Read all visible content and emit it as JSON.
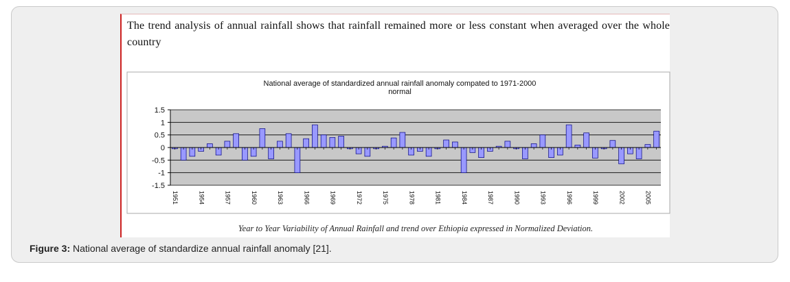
{
  "intro_text": "The trend analysis of annual rainfall shows that rainfall remained more or less constant when averaged over the whole country",
  "figure_caption_label": "Figure 3:",
  "figure_caption_text": " National average of standardize annual rainfall anomaly [21].",
  "image_caption": "Year to Year Variability of Annual Rainfall and trend over Ethiopia expressed in Normalized Deviation.",
  "chart_data": {
    "type": "bar",
    "title": "National average of standardized annual rainfall anomaly compated to 1971-2000 normal",
    "title_lines": [
      "National average of standardized annual rainfall anomaly compated to 1971-2000",
      "normal"
    ],
    "xlabel": "",
    "ylabel": "",
    "ylim": [
      -1.5,
      1.5
    ],
    "yticks": [
      -1.5,
      -1,
      -0.5,
      0,
      0.5,
      1,
      1.5
    ],
    "ytick_labels": [
      "-1.5",
      "-1",
      "-0.5",
      "0",
      "0.5",
      "1",
      "1.5"
    ],
    "grid": true,
    "legend": "none",
    "bar_color": "#9999ff",
    "bar_edge_color": "#000080",
    "xtick_labels": [
      "1951",
      "1954",
      "1957",
      "1960",
      "1963",
      "1966",
      "1969",
      "1972",
      "1975",
      "1978",
      "1981",
      "1984",
      "1987",
      "1990",
      "1993",
      "1996",
      "1999",
      "2002",
      "2005"
    ],
    "x": [
      1951,
      1952,
      1953,
      1954,
      1955,
      1956,
      1957,
      1958,
      1959,
      1960,
      1961,
      1962,
      1963,
      1964,
      1965,
      1966,
      1967,
      1968,
      1969,
      1970,
      1971,
      1972,
      1973,
      1974,
      1975,
      1976,
      1977,
      1978,
      1979,
      1980,
      1981,
      1982,
      1983,
      1984,
      1985,
      1986,
      1987,
      1988,
      1989,
      1990,
      1991,
      1992,
      1993,
      1994,
      1995,
      1996,
      1997,
      1998,
      1999,
      2000,
      2001,
      2002,
      2003,
      2004,
      2005,
      2006
    ],
    "values": [
      -0.05,
      -0.5,
      -0.35,
      -0.15,
      0.15,
      -0.3,
      0.25,
      0.55,
      -0.5,
      -0.35,
      0.75,
      -0.45,
      0.25,
      0.55,
      -1.0,
      0.35,
      0.9,
      0.5,
      0.4,
      0.45,
      -0.05,
      -0.25,
      -0.35,
      -0.05,
      0.05,
      0.38,
      0.6,
      -0.3,
      -0.15,
      -0.35,
      -0.05,
      0.3,
      0.22,
      -1.0,
      -0.2,
      -0.4,
      -0.15,
      0.05,
      0.25,
      -0.05,
      -0.45,
      0.15,
      0.5,
      -0.4,
      -0.3,
      0.9,
      0.1,
      0.58,
      -0.42,
      -0.05,
      0.28,
      -0.65,
      -0.25,
      -0.45,
      0.12,
      0.65
    ]
  }
}
